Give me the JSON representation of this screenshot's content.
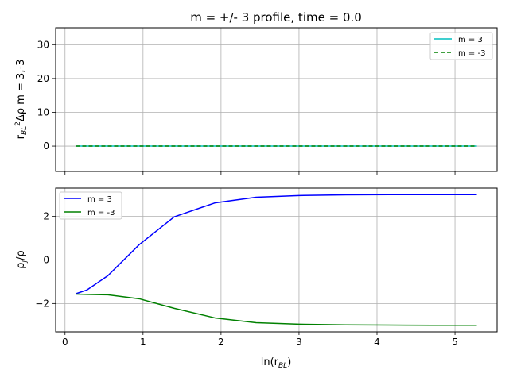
{
  "chart_data": [
    {
      "type": "line",
      "title": "m = +/- 3 profile, time = 0.0",
      "ylabel": "r_BL^2 Δρ   m = 3,-3",
      "xlim": [
        -0.12,
        5.54
      ],
      "ylim": [
        -7.5,
        35
      ],
      "xticks": [
        0,
        1,
        2,
        3,
        4,
        5
      ],
      "yticks": [
        0,
        10,
        20,
        30
      ],
      "x_tick_labels_shown": false,
      "grid": true,
      "legend": "top-right",
      "series": [
        {
          "name": "m = 3",
          "color": "#00bfbf",
          "style": "solid",
          "x": [
            0.14,
            0.28,
            0.55,
            0.95,
            1.4,
            1.92,
            2.45,
            3.0,
            3.6,
            4.15,
            4.7,
            5.28
          ],
          "y": [
            0,
            0,
            0,
            0,
            0,
            0,
            0,
            0,
            0,
            0,
            0,
            0
          ]
        },
        {
          "name": "m = -3",
          "color": "#008000",
          "style": "dashed",
          "x": [
            0.14,
            0.28,
            0.55,
            0.95,
            1.4,
            1.92,
            2.45,
            3.0,
            3.6,
            4.15,
            4.7,
            5.28
          ],
          "y": [
            0,
            0,
            0,
            0,
            0,
            0,
            0,
            0,
            0,
            0,
            0,
            0
          ]
        }
      ]
    },
    {
      "type": "line",
      "xlabel": "ln(r_BL)",
      "ylabel": "ρ_j/ρ",
      "xlim": [
        -0.12,
        5.54
      ],
      "ylim": [
        -3.3,
        3.3
      ],
      "xticks": [
        0,
        1,
        2,
        3,
        4,
        5
      ],
      "yticks": [
        -2,
        0,
        2
      ],
      "grid": true,
      "legend": "top-left",
      "series": [
        {
          "name": "m = 3",
          "color": "#0000ff",
          "style": "solid",
          "x": [
            0.14,
            0.28,
            0.55,
            0.95,
            1.4,
            1.92,
            2.45,
            3.0,
            3.6,
            4.15,
            4.7,
            5.28
          ],
          "y": [
            -1.55,
            -1.38,
            -0.72,
            0.7,
            1.98,
            2.62,
            2.88,
            2.96,
            2.99,
            3.0,
            3.0,
            3.0
          ]
        },
        {
          "name": "m = -3",
          "color": "#008000",
          "style": "solid",
          "x": [
            0.14,
            0.28,
            0.55,
            0.95,
            1.4,
            1.92,
            2.45,
            3.0,
            3.6,
            4.15,
            4.7,
            5.28
          ],
          "y": [
            -1.57,
            -1.58,
            -1.6,
            -1.78,
            -2.22,
            -2.66,
            -2.88,
            -2.95,
            -2.98,
            -2.99,
            -3.0,
            -3.0
          ]
        }
      ]
    }
  ]
}
